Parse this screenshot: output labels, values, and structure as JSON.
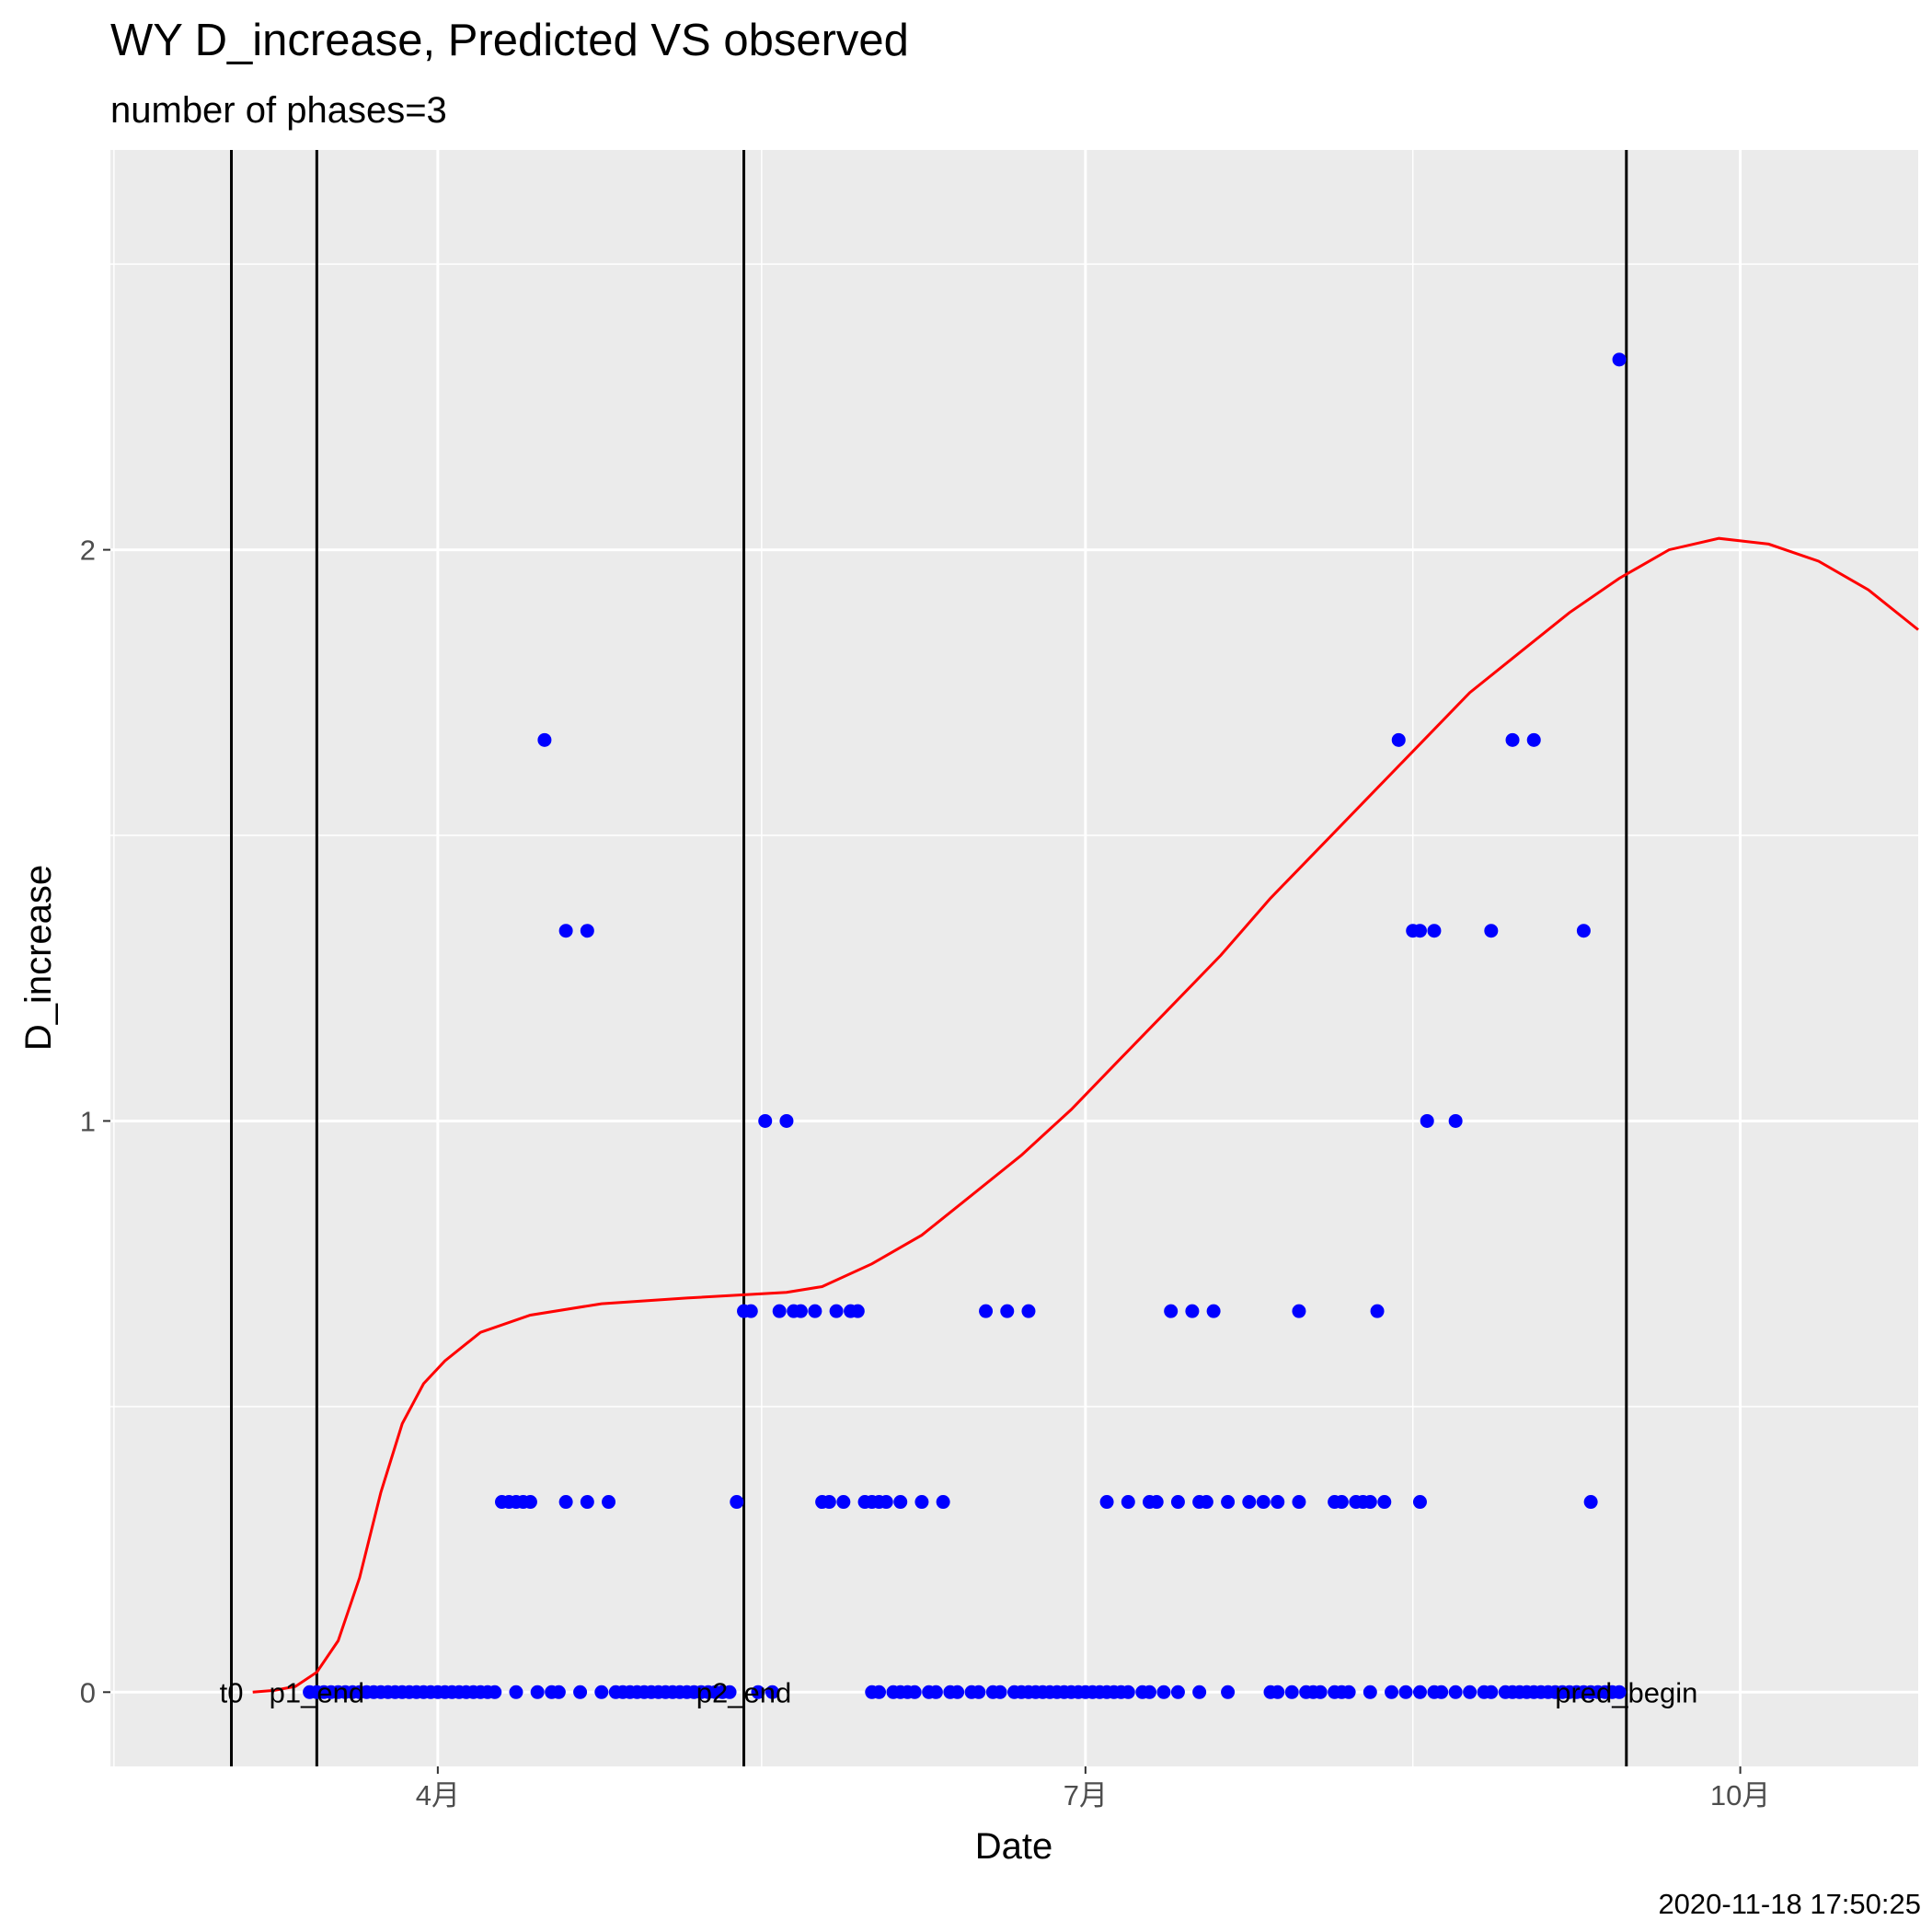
{
  "chart_data": {
    "type": "scatter",
    "title": "WY D_increase, Predicted VS observed",
    "subtitle": "number of phases=3",
    "xlabel": "Date",
    "ylabel": "D_increase",
    "caption": "2020-11-18 17:50:25",
    "x_ticks": [
      {
        "date": "2020-04-01",
        "label": "4月"
      },
      {
        "date": "2020-07-01",
        "label": "7月"
      },
      {
        "date": "2020-10-01",
        "label": "10月"
      }
    ],
    "y_ticks": [
      0,
      1,
      2
    ],
    "xlim": [
      "2020-02-15",
      "2020-10-26"
    ],
    "ylim": [
      -0.13,
      2.7
    ],
    "grid": true,
    "background": "#EBEBEB",
    "vlines": [
      {
        "label": "t0",
        "date": "2020-03-03"
      },
      {
        "label": "p1_end",
        "date": "2020-03-15"
      },
      {
        "label": "p2_end",
        "date": "2020-05-14"
      },
      {
        "label": "pred_begin",
        "date": "2020-09-15"
      }
    ],
    "series": [
      {
        "kind": "observed",
        "color": "#0000FF",
        "points": [
          [
            "2020-03-14",
            0
          ],
          [
            "2020-03-15",
            0
          ],
          [
            "2020-03-16",
            0
          ],
          [
            "2020-03-17",
            0
          ],
          [
            "2020-03-18",
            0
          ],
          [
            "2020-03-19",
            0
          ],
          [
            "2020-03-20",
            0
          ],
          [
            "2020-03-21",
            0
          ],
          [
            "2020-03-22",
            0
          ],
          [
            "2020-03-23",
            0
          ],
          [
            "2020-03-24",
            0
          ],
          [
            "2020-03-25",
            0
          ],
          [
            "2020-03-26",
            0
          ],
          [
            "2020-03-27",
            0
          ],
          [
            "2020-03-28",
            0
          ],
          [
            "2020-03-29",
            0
          ],
          [
            "2020-03-30",
            0
          ],
          [
            "2020-03-31",
            0
          ],
          [
            "2020-04-01",
            0
          ],
          [
            "2020-04-02",
            0
          ],
          [
            "2020-04-03",
            0
          ],
          [
            "2020-04-04",
            0
          ],
          [
            "2020-04-05",
            0
          ],
          [
            "2020-04-06",
            0
          ],
          [
            "2020-04-07",
            0
          ],
          [
            "2020-04-08",
            0
          ],
          [
            "2020-04-09",
            0
          ],
          [
            "2020-04-10",
            0.333
          ],
          [
            "2020-04-11",
            0.333
          ],
          [
            "2020-04-12",
            0.333
          ],
          [
            "2020-04-13",
            0.333
          ],
          [
            "2020-04-14",
            0.333
          ],
          [
            "2020-04-12",
            0
          ],
          [
            "2020-04-15",
            0
          ],
          [
            "2020-04-16",
            1.667
          ],
          [
            "2020-04-17",
            0
          ],
          [
            "2020-04-18",
            0
          ],
          [
            "2020-04-19",
            0.333
          ],
          [
            "2020-04-19",
            1.333
          ],
          [
            "2020-04-21",
            0
          ],
          [
            "2020-04-22",
            0.333
          ],
          [
            "2020-04-22",
            1.333
          ],
          [
            "2020-04-24",
            0
          ],
          [
            "2020-04-25",
            0.333
          ],
          [
            "2020-04-26",
            0
          ],
          [
            "2020-04-27",
            0
          ],
          [
            "2020-04-28",
            0
          ],
          [
            "2020-04-29",
            0
          ],
          [
            "2020-04-30",
            0
          ],
          [
            "2020-05-01",
            0
          ],
          [
            "2020-05-02",
            0
          ],
          [
            "2020-05-03",
            0
          ],
          [
            "2020-05-04",
            0
          ],
          [
            "2020-05-05",
            0
          ],
          [
            "2020-05-06",
            0
          ],
          [
            "2020-05-07",
            0
          ],
          [
            "2020-05-08",
            0
          ],
          [
            "2020-05-09",
            0
          ],
          [
            "2020-05-10",
            0
          ],
          [
            "2020-05-11",
            0
          ],
          [
            "2020-05-12",
            0
          ],
          [
            "2020-05-13",
            0.333
          ],
          [
            "2020-05-14",
            0.667
          ],
          [
            "2020-05-15",
            0.667
          ],
          [
            "2020-05-16",
            0
          ],
          [
            "2020-05-17",
            1
          ],
          [
            "2020-05-18",
            0
          ],
          [
            "2020-05-19",
            0.667
          ],
          [
            "2020-05-20",
            1
          ],
          [
            "2020-05-21",
            0.667
          ],
          [
            "2020-05-22",
            0.667
          ],
          [
            "2020-05-24",
            0.667
          ],
          [
            "2020-05-25",
            0.333
          ],
          [
            "2020-05-26",
            0.333
          ],
          [
            "2020-05-27",
            0.667
          ],
          [
            "2020-05-28",
            0.333
          ],
          [
            "2020-05-29",
            0.667
          ],
          [
            "2020-05-30",
            0.667
          ],
          [
            "2020-05-31",
            0.333
          ],
          [
            "2020-06-01",
            0.333
          ],
          [
            "2020-06-02",
            0.333
          ],
          [
            "2020-06-03",
            0.333
          ],
          [
            "2020-06-05",
            0.333
          ],
          [
            "2020-06-08",
            0.333
          ],
          [
            "2020-06-11",
            0.333
          ],
          [
            "2020-06-01",
            0
          ],
          [
            "2020-06-02",
            0
          ],
          [
            "2020-06-04",
            0
          ],
          [
            "2020-06-05",
            0
          ],
          [
            "2020-06-06",
            0
          ],
          [
            "2020-06-07",
            0
          ],
          [
            "2020-06-09",
            0
          ],
          [
            "2020-06-10",
            0
          ],
          [
            "2020-06-12",
            0
          ],
          [
            "2020-06-13",
            0
          ],
          [
            "2020-06-15",
            0
          ],
          [
            "2020-06-16",
            0
          ],
          [
            "2020-06-18",
            0
          ],
          [
            "2020-06-19",
            0
          ],
          [
            "2020-06-21",
            0
          ],
          [
            "2020-06-22",
            0
          ],
          [
            "2020-06-23",
            0
          ],
          [
            "2020-06-24",
            0
          ],
          [
            "2020-06-25",
            0
          ],
          [
            "2020-06-26",
            0
          ],
          [
            "2020-06-27",
            0
          ],
          [
            "2020-06-28",
            0
          ],
          [
            "2020-06-29",
            0
          ],
          [
            "2020-06-30",
            0
          ],
          [
            "2020-07-01",
            0
          ],
          [
            "2020-07-02",
            0
          ],
          [
            "2020-07-03",
            0
          ],
          [
            "2020-07-04",
            0
          ],
          [
            "2020-07-05",
            0
          ],
          [
            "2020-07-06",
            0
          ],
          [
            "2020-07-07",
            0
          ],
          [
            "2020-07-09",
            0
          ],
          [
            "2020-07-10",
            0
          ],
          [
            "2020-07-12",
            0
          ],
          [
            "2020-07-14",
            0
          ],
          [
            "2020-07-17",
            0
          ],
          [
            "2020-07-21",
            0
          ],
          [
            "2020-07-27",
            0
          ],
          [
            "2020-07-28",
            0
          ],
          [
            "2020-07-30",
            0
          ],
          [
            "2020-08-01",
            0
          ],
          [
            "2020-08-02",
            0
          ],
          [
            "2020-08-03",
            0
          ],
          [
            "2020-08-05",
            0
          ],
          [
            "2020-08-06",
            0
          ],
          [
            "2020-08-07",
            0
          ],
          [
            "2020-08-10",
            0
          ],
          [
            "2020-08-13",
            0
          ],
          [
            "2020-08-15",
            0
          ],
          [
            "2020-08-17",
            0
          ],
          [
            "2020-08-19",
            0
          ],
          [
            "2020-08-20",
            0
          ],
          [
            "2020-08-22",
            0
          ],
          [
            "2020-08-24",
            0
          ],
          [
            "2020-08-26",
            0
          ],
          [
            "2020-08-27",
            0
          ],
          [
            "2020-08-29",
            0
          ],
          [
            "2020-08-30",
            0
          ],
          [
            "2020-08-31",
            0
          ],
          [
            "2020-09-01",
            0
          ],
          [
            "2020-09-02",
            0
          ],
          [
            "2020-09-03",
            0
          ],
          [
            "2020-09-04",
            0
          ],
          [
            "2020-09-05",
            0
          ],
          [
            "2020-09-06",
            0
          ],
          [
            "2020-09-07",
            0
          ],
          [
            "2020-09-08",
            0
          ],
          [
            "2020-09-09",
            0
          ],
          [
            "2020-09-10",
            0
          ],
          [
            "2020-09-11",
            0
          ],
          [
            "2020-09-12",
            0
          ],
          [
            "2020-09-13",
            0
          ],
          [
            "2020-09-14",
            0
          ],
          [
            "2020-06-17",
            0.667
          ],
          [
            "2020-06-20",
            0.667
          ],
          [
            "2020-06-23",
            0.667
          ],
          [
            "2020-07-04",
            0.333
          ],
          [
            "2020-07-07",
            0.333
          ],
          [
            "2020-07-10",
            0.333
          ],
          [
            "2020-07-11",
            0.333
          ],
          [
            "2020-07-14",
            0.333
          ],
          [
            "2020-07-17",
            0.333
          ],
          [
            "2020-07-18",
            0.333
          ],
          [
            "2020-07-21",
            0.333
          ],
          [
            "2020-07-24",
            0.333
          ],
          [
            "2020-07-26",
            0.333
          ],
          [
            "2020-07-28",
            0.333
          ],
          [
            "2020-07-31",
            0.333
          ],
          [
            "2020-08-05",
            0.333
          ],
          [
            "2020-08-06",
            0.333
          ],
          [
            "2020-08-08",
            0.333
          ],
          [
            "2020-08-09",
            0.333
          ],
          [
            "2020-08-10",
            0.333
          ],
          [
            "2020-08-12",
            0.333
          ],
          [
            "2020-08-17",
            0.333
          ],
          [
            "2020-09-10",
            0.333
          ],
          [
            "2020-07-13",
            0.667
          ],
          [
            "2020-07-16",
            0.667
          ],
          [
            "2020-07-19",
            0.667
          ],
          [
            "2020-07-31",
            0.667
          ],
          [
            "2020-08-11",
            0.667
          ],
          [
            "2020-08-14",
            1.667
          ],
          [
            "2020-08-16",
            1.333
          ],
          [
            "2020-08-17",
            1.333
          ],
          [
            "2020-08-19",
            1.333
          ],
          [
            "2020-08-27",
            1.333
          ],
          [
            "2020-09-09",
            1.333
          ],
          [
            "2020-08-18",
            1
          ],
          [
            "2020-08-22",
            1
          ],
          [
            "2020-08-30",
            1.667
          ],
          [
            "2020-09-02",
            1.667
          ],
          [
            "2020-09-14",
            2.333
          ]
        ]
      },
      {
        "kind": "predicted",
        "color": "#FF0000",
        "points": [
          [
            "2020-03-06",
            0
          ],
          [
            "2020-03-09",
            0.003
          ],
          [
            "2020-03-12",
            0.01
          ],
          [
            "2020-03-15",
            0.035
          ],
          [
            "2020-03-18",
            0.09
          ],
          [
            "2020-03-21",
            0.2
          ],
          [
            "2020-03-24",
            0.35
          ],
          [
            "2020-03-27",
            0.47
          ],
          [
            "2020-03-30",
            0.54
          ],
          [
            "2020-04-02",
            0.58
          ],
          [
            "2020-04-07",
            0.63
          ],
          [
            "2020-04-14",
            0.66
          ],
          [
            "2020-04-24",
            0.68
          ],
          [
            "2020-05-06",
            0.69
          ],
          [
            "2020-05-20",
            0.7
          ],
          [
            "2020-05-25",
            0.71
          ],
          [
            "2020-06-01",
            0.75
          ],
          [
            "2020-06-08",
            0.8
          ],
          [
            "2020-06-15",
            0.87
          ],
          [
            "2020-06-22",
            0.94
          ],
          [
            "2020-06-29",
            1.02
          ],
          [
            "2020-07-06",
            1.11
          ],
          [
            "2020-07-13",
            1.2
          ],
          [
            "2020-07-20",
            1.29
          ],
          [
            "2020-07-27",
            1.39
          ],
          [
            "2020-08-03",
            1.48
          ],
          [
            "2020-08-10",
            1.57
          ],
          [
            "2020-08-17",
            1.66
          ],
          [
            "2020-08-24",
            1.75
          ],
          [
            "2020-08-31",
            1.82
          ],
          [
            "2020-09-07",
            1.89
          ],
          [
            "2020-09-14",
            1.95
          ],
          [
            "2020-09-21",
            2.0
          ],
          [
            "2020-09-28",
            2.02
          ],
          [
            "2020-10-05",
            2.01
          ],
          [
            "2020-10-12",
            1.98
          ],
          [
            "2020-10-19",
            1.93
          ],
          [
            "2020-10-26",
            1.86
          ]
        ]
      }
    ]
  }
}
